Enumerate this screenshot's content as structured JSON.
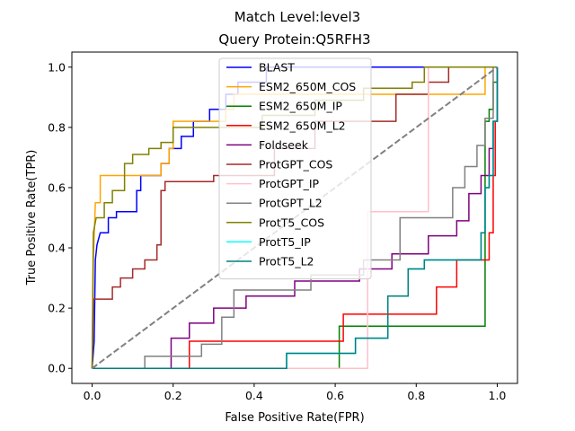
{
  "chart_data": {
    "type": "line",
    "suptitle": "Match Level:level3",
    "title": "Query Protein:Q5RFH3",
    "xlabel": "False Positive Rate(FPR)",
    "ylabel": "True Positive Rate(TPR)",
    "xlim": [
      -0.05,
      1.05
    ],
    "ylim": [
      -0.05,
      1.05
    ],
    "xticks": [
      0.0,
      0.2,
      0.4,
      0.6,
      0.8,
      1.0
    ],
    "yticks": [
      0.0,
      0.2,
      0.4,
      0.6,
      0.8,
      1.0
    ],
    "tick_labels_x": [
      "0.0",
      "0.2",
      "0.4",
      "0.6",
      "0.8",
      "1.0"
    ],
    "tick_labels_y": [
      "0.0",
      "0.2",
      "0.4",
      "0.6",
      "0.8",
      "1.0"
    ],
    "grid": false,
    "legend_position": "top-center",
    "diagonal": {
      "color": "#808080",
      "style": "dashed"
    },
    "series": [
      {
        "name": "BLAST",
        "color": "#0000ff",
        "points": [
          [
            0,
            0
          ],
          [
            0.005,
            0.09
          ],
          [
            0.008,
            0.36
          ],
          [
            0.012,
            0.41
          ],
          [
            0.02,
            0.45
          ],
          [
            0.04,
            0.45
          ],
          [
            0.04,
            0.5
          ],
          [
            0.06,
            0.5
          ],
          [
            0.06,
            0.52
          ],
          [
            0.11,
            0.52
          ],
          [
            0.11,
            0.59
          ],
          [
            0.12,
            0.59
          ],
          [
            0.12,
            0.64
          ],
          [
            0.17,
            0.64
          ],
          [
            0.17,
            0.68
          ],
          [
            0.19,
            0.68
          ],
          [
            0.19,
            0.73
          ],
          [
            0.22,
            0.73
          ],
          [
            0.22,
            0.77
          ],
          [
            0.25,
            0.77
          ],
          [
            0.25,
            0.82
          ],
          [
            0.29,
            0.82
          ],
          [
            0.29,
            0.86
          ],
          [
            0.33,
            0.86
          ],
          [
            0.33,
            0.91
          ],
          [
            0.36,
            0.91
          ],
          [
            0.36,
            0.95
          ],
          [
            0.43,
            0.95
          ],
          [
            0.43,
            1.0
          ],
          [
            1.0,
            1.0
          ]
        ]
      },
      {
        "name": "ESM2_650M_COS",
        "color": "#ffa500",
        "points": [
          [
            0,
            0
          ],
          [
            0.003,
            0.36
          ],
          [
            0.008,
            0.55
          ],
          [
            0.02,
            0.55
          ],
          [
            0.02,
            0.64
          ],
          [
            0.17,
            0.64
          ],
          [
            0.17,
            0.68
          ],
          [
            0.19,
            0.68
          ],
          [
            0.19,
            0.73
          ],
          [
            0.2,
            0.73
          ],
          [
            0.2,
            0.82
          ],
          [
            0.33,
            0.82
          ],
          [
            0.33,
            0.86
          ],
          [
            0.35,
            0.86
          ],
          [
            0.35,
            0.91
          ],
          [
            0.5,
            0.91
          ],
          [
            0.5,
            0.91
          ],
          [
            0.97,
            0.91
          ],
          [
            0.97,
            1.0
          ],
          [
            1.0,
            1.0
          ]
        ]
      },
      {
        "name": "ESM2_650M_IP",
        "color": "#008000",
        "points": [
          [
            0,
            0
          ],
          [
            0.61,
            0
          ],
          [
            0.61,
            0.14
          ],
          [
            0.97,
            0.14
          ],
          [
            0.97,
            0.82
          ],
          [
            0.98,
            0.82
          ],
          [
            0.98,
            0.86
          ],
          [
            0.99,
            0.86
          ],
          [
            0.99,
            0.95
          ],
          [
            1.0,
            0.95
          ],
          [
            1.0,
            1.0
          ]
        ]
      },
      {
        "name": "ESM2_650M_L2",
        "color": "#ff0000",
        "points": [
          [
            0,
            0
          ],
          [
            0.24,
            0
          ],
          [
            0.24,
            0.09
          ],
          [
            0.62,
            0.09
          ],
          [
            0.62,
            0.18
          ],
          [
            0.85,
            0.18
          ],
          [
            0.85,
            0.27
          ],
          [
            0.9,
            0.27
          ],
          [
            0.9,
            0.36
          ],
          [
            0.98,
            0.36
          ],
          [
            0.98,
            0.45
          ],
          [
            0.99,
            0.45
          ],
          [
            0.99,
            0.64
          ],
          [
            0.995,
            0.64
          ],
          [
            0.995,
            0.82
          ],
          [
            1.0,
            0.82
          ],
          [
            1.0,
            1.0
          ]
        ]
      },
      {
        "name": "Foldseek",
        "color": "#800080",
        "points": [
          [
            0,
            0
          ],
          [
            0.195,
            0
          ],
          [
            0.195,
            0.1
          ],
          [
            0.24,
            0.1
          ],
          [
            0.24,
            0.15
          ],
          [
            0.3,
            0.15
          ],
          [
            0.3,
            0.2
          ],
          [
            0.38,
            0.2
          ],
          [
            0.38,
            0.24
          ],
          [
            0.5,
            0.24
          ],
          [
            0.5,
            0.29
          ],
          [
            0.66,
            0.29
          ],
          [
            0.66,
            0.33
          ],
          [
            0.74,
            0.33
          ],
          [
            0.74,
            0.38
          ],
          [
            0.83,
            0.38
          ],
          [
            0.83,
            0.44
          ],
          [
            0.9,
            0.44
          ],
          [
            0.9,
            0.49
          ],
          [
            0.93,
            0.49
          ],
          [
            0.93,
            0.58
          ],
          [
            0.96,
            0.58
          ],
          [
            0.96,
            0.64
          ],
          [
            0.98,
            0.64
          ],
          [
            0.98,
            0.73
          ],
          [
            0.99,
            0.73
          ],
          [
            0.99,
            0.82
          ],
          [
            1.0,
            0.82
          ],
          [
            1.0,
            1.0
          ]
        ]
      },
      {
        "name": "ProtGPT_COS",
        "color": "#a52a2a",
        "points": [
          [
            0,
            0
          ],
          [
            0.003,
            0.23
          ],
          [
            0.05,
            0.23
          ],
          [
            0.05,
            0.27
          ],
          [
            0.07,
            0.27
          ],
          [
            0.07,
            0.3
          ],
          [
            0.1,
            0.3
          ],
          [
            0.1,
            0.33
          ],
          [
            0.13,
            0.33
          ],
          [
            0.13,
            0.36
          ],
          [
            0.16,
            0.36
          ],
          [
            0.16,
            0.41
          ],
          [
            0.17,
            0.41
          ],
          [
            0.17,
            0.59
          ],
          [
            0.18,
            0.59
          ],
          [
            0.18,
            0.62
          ],
          [
            0.3,
            0.62
          ],
          [
            0.3,
            0.64
          ],
          [
            0.45,
            0.64
          ],
          [
            0.45,
            0.73
          ],
          [
            0.55,
            0.73
          ],
          [
            0.55,
            0.82
          ],
          [
            0.75,
            0.82
          ],
          [
            0.75,
            0.91
          ],
          [
            0.83,
            0.91
          ],
          [
            0.83,
            0.95
          ],
          [
            0.88,
            0.95
          ],
          [
            0.88,
            1.0
          ],
          [
            1.0,
            1.0
          ]
        ]
      },
      {
        "name": "ProtGPT_IP",
        "color": "#ffc0cb",
        "points": [
          [
            0,
            0
          ],
          [
            0.68,
            0
          ],
          [
            0.68,
            0.52
          ],
          [
            0.83,
            0.52
          ],
          [
            0.83,
            1.0
          ],
          [
            1.0,
            1.0
          ]
        ]
      },
      {
        "name": "ProtGPT_L2",
        "color": "#808080",
        "points": [
          [
            0,
            0
          ],
          [
            0.13,
            0
          ],
          [
            0.13,
            0.04
          ],
          [
            0.27,
            0.04
          ],
          [
            0.27,
            0.08
          ],
          [
            0.32,
            0.08
          ],
          [
            0.32,
            0.17
          ],
          [
            0.35,
            0.17
          ],
          [
            0.35,
            0.26
          ],
          [
            0.54,
            0.26
          ],
          [
            0.54,
            0.31
          ],
          [
            0.67,
            0.31
          ],
          [
            0.67,
            0.36
          ],
          [
            0.76,
            0.36
          ],
          [
            0.76,
            0.5
          ],
          [
            0.89,
            0.5
          ],
          [
            0.89,
            0.6
          ],
          [
            0.92,
            0.6
          ],
          [
            0.92,
            0.67
          ],
          [
            0.95,
            0.67
          ],
          [
            0.95,
            0.74
          ],
          [
            0.97,
            0.74
          ],
          [
            0.97,
            0.83
          ],
          [
            0.99,
            0.83
          ],
          [
            0.99,
            1.0
          ],
          [
            1.0,
            1.0
          ]
        ]
      },
      {
        "name": "ProtT5_COS",
        "color": "#808000",
        "points": [
          [
            0,
            0
          ],
          [
            0.003,
            0.45
          ],
          [
            0.01,
            0.5
          ],
          [
            0.03,
            0.5
          ],
          [
            0.03,
            0.55
          ],
          [
            0.05,
            0.55
          ],
          [
            0.05,
            0.59
          ],
          [
            0.08,
            0.59
          ],
          [
            0.08,
            0.68
          ],
          [
            0.1,
            0.68
          ],
          [
            0.1,
            0.71
          ],
          [
            0.14,
            0.71
          ],
          [
            0.14,
            0.73
          ],
          [
            0.17,
            0.73
          ],
          [
            0.17,
            0.75
          ],
          [
            0.2,
            0.75
          ],
          [
            0.2,
            0.8
          ],
          [
            0.42,
            0.8
          ],
          [
            0.42,
            0.84
          ],
          [
            0.55,
            0.84
          ],
          [
            0.55,
            0.89
          ],
          [
            0.67,
            0.89
          ],
          [
            0.67,
            0.93
          ],
          [
            0.79,
            0.93
          ],
          [
            0.79,
            0.95
          ],
          [
            0.82,
            0.95
          ],
          [
            0.82,
            1.0
          ],
          [
            1.0,
            1.0
          ]
        ]
      },
      {
        "name": "ProtT5_IP",
        "color": "#00ffff",
        "points": [
          [
            0,
            0
          ],
          [
            0.48,
            0
          ],
          [
            0.48,
            0.05
          ],
          [
            0.65,
            0.05
          ],
          [
            0.65,
            0.1
          ],
          [
            0.73,
            0.1
          ],
          [
            0.73,
            0.24
          ],
          [
            0.78,
            0.24
          ],
          [
            0.78,
            0.33
          ],
          [
            0.82,
            0.33
          ],
          [
            0.82,
            0.36
          ],
          [
            0.96,
            0.36
          ],
          [
            0.96,
            0.45
          ],
          [
            0.97,
            0.45
          ],
          [
            0.97,
            0.6
          ],
          [
            0.98,
            0.6
          ],
          [
            0.98,
            0.64
          ],
          [
            0.99,
            0.64
          ],
          [
            0.99,
            0.82
          ],
          [
            1.0,
            0.82
          ],
          [
            1.0,
            1.0
          ]
        ]
      },
      {
        "name": "ProtT5_L2",
        "color": "#008080",
        "points": [
          [
            0,
            0
          ],
          [
            0.48,
            0
          ],
          [
            0.48,
            0.05
          ],
          [
            0.65,
            0.05
          ],
          [
            0.65,
            0.1
          ],
          [
            0.73,
            0.1
          ],
          [
            0.73,
            0.24
          ],
          [
            0.78,
            0.24
          ],
          [
            0.78,
            0.33
          ],
          [
            0.82,
            0.33
          ],
          [
            0.82,
            0.36
          ],
          [
            0.96,
            0.36
          ],
          [
            0.96,
            0.45
          ],
          [
            0.97,
            0.45
          ],
          [
            0.97,
            0.6
          ],
          [
            0.98,
            0.6
          ],
          [
            0.98,
            0.64
          ],
          [
            0.99,
            0.64
          ],
          [
            0.99,
            0.82
          ],
          [
            1.0,
            0.82
          ],
          [
            1.0,
            1.0
          ]
        ]
      }
    ]
  }
}
